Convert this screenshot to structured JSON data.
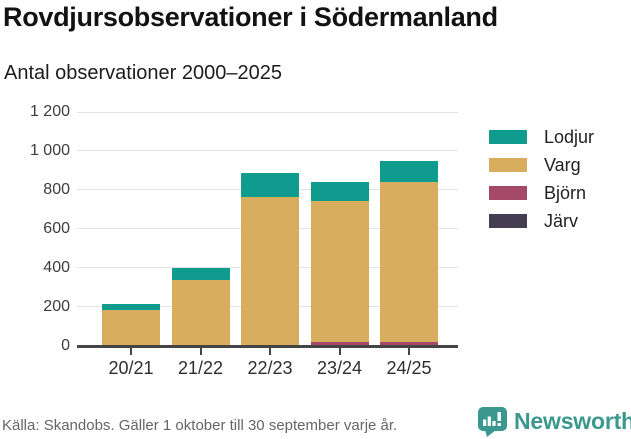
{
  "header": {
    "title": "Rovdjursobservationer i Södermanland",
    "subtitle": "Antal observationer 2000–2025"
  },
  "chart_data": {
    "type": "bar",
    "stacked": true,
    "title": "Rovdjursobservationer i Södermanland",
    "subtitle": "Antal observationer 2000–2025",
    "categories": [
      "20/21",
      "21/22",
      "22/23",
      "23/24",
      "24/25"
    ],
    "series": [
      {
        "name": "Järv",
        "color": "#433e51",
        "values": [
          0,
          0,
          0,
          3,
          3
        ]
      },
      {
        "name": "Björn",
        "color": "#a44a68",
        "values": [
          0,
          0,
          0,
          13,
          13
        ]
      },
      {
        "name": "Varg",
        "color": "#d8ad5d",
        "values": [
          180,
          335,
          765,
          725,
          825
        ]
      },
      {
        "name": "Lodjur",
        "color": "#0f9b8e",
        "values": [
          35,
          65,
          120,
          100,
          105
        ]
      }
    ],
    "totals_estimated": [
      215,
      400,
      885,
      841,
      946
    ],
    "ylim": [
      0,
      1200
    ],
    "yticks": [
      {
        "value": 1200,
        "label": "1 200"
      },
      {
        "value": 1000,
        "label": "1 000"
      },
      {
        "value": 800,
        "label": "800"
      },
      {
        "value": 600,
        "label": "600"
      },
      {
        "value": 400,
        "label": "400"
      },
      {
        "value": 200,
        "label": "200"
      },
      {
        "value": 0,
        "label": "0"
      }
    ],
    "grid": "horizontal",
    "legend_position": "right"
  },
  "legend": {
    "items": [
      {
        "label": "Lodjur",
        "color": "#0f9b8e"
      },
      {
        "label": "Varg",
        "color": "#d8ad5d"
      },
      {
        "label": "Björn",
        "color": "#a44a68"
      },
      {
        "label": "Järv",
        "color": "#433e51"
      }
    ]
  },
  "colors": {
    "axis": "#454545",
    "gridline": "#e3e3e3",
    "brand_teal": "#3a988f"
  },
  "footer": {
    "source": "Källa: Skandobs. Gäller 1 oktober till 30 september varje år.",
    "brand": "Newsworthy"
  }
}
